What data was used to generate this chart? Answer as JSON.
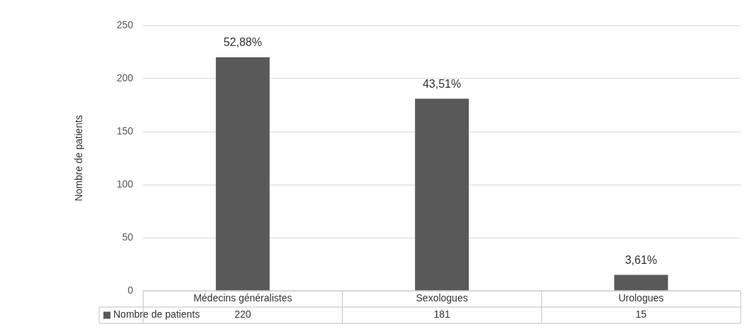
{
  "chart_data": {
    "type": "bar",
    "ylabel": "Nombre de patients",
    "categories": [
      "Médecins généralistes",
      "Sexologues",
      "Urologues"
    ],
    "series": [
      {
        "name": "Nombre de patients",
        "color": "#595959",
        "values": [
          220,
          181,
          15
        ]
      }
    ],
    "annotations": [
      {
        "text": "52,88%",
        "x": "Médecins généralistes",
        "y": 220
      },
      {
        "text": "43,51%",
        "x": "Sexologues",
        "y": 181
      },
      {
        "text": "3,61%",
        "x": "Urologues",
        "y": 15
      }
    ],
    "ylim": [
      0,
      250
    ],
    "yticks": [
      0,
      50,
      100,
      150,
      200,
      250
    ],
    "grid": "y",
    "data_labels": true,
    "legend": "bottom"
  }
}
